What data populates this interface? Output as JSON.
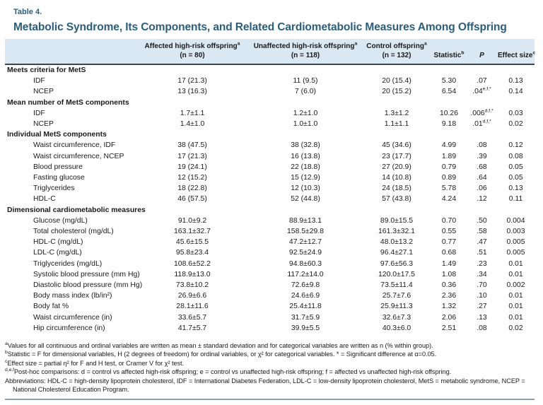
{
  "colors": {
    "title_navy": "#2b5d7c",
    "header_band": "#d9e8f3",
    "rule_dark": "#3a4750",
    "rule_bottom": "#8aa0b2",
    "text": "#1a1a1a"
  },
  "table": {
    "label": "Table 4.",
    "title": "Metabolic Syndrome, Its Components, and Related Cardiometabolic Measures Among Offspring",
    "columns": [
      {
        "label": "Affected high-risk offspring",
        "sup": "a",
        "count": "(n = 80)"
      },
      {
        "label": "Unaffected high-risk offspring",
        "sup": "a",
        "count": "(n = 118)"
      },
      {
        "label": "Control offspring",
        "sup": "a",
        "count": "(n = 132)"
      },
      {
        "label": "Statistic",
        "sup": "b"
      },
      {
        "label": "P",
        "italic": true
      },
      {
        "label": "Effect size",
        "sup": "c"
      }
    ],
    "sections": [
      {
        "header": "Meets criteria for MetS",
        "rows": [
          {
            "label": "IDF",
            "cells": [
              "17 (21.3)",
              "11 (9.5)",
              "20 (15.4)",
              "5.30",
              ".07",
              "0.13"
            ],
            "p_sup": ""
          },
          {
            "label": "NCEP",
            "cells": [
              "13 (16.3)",
              "7 (6.0)",
              "20 (15.2)",
              "6.54",
              ".04",
              "0.14"
            ],
            "p_sup": "e,f,*"
          }
        ]
      },
      {
        "header": "Mean number of MetS components",
        "rows": [
          {
            "label": "IDF",
            "cells": [
              "1.7±1.1",
              "1.2±1.0",
              "1.3±1.2",
              "10.26",
              ".006",
              "0.03"
            ],
            "p_sup": "d,f,*"
          },
          {
            "label": "NCEP",
            "cells": [
              "1.4±1.0",
              "1.0±1.0",
              "1.1±1.1",
              "9.18",
              ".01",
              "0.02"
            ],
            "p_sup": "d,f,*"
          }
        ]
      },
      {
        "header": "Individual MetS components",
        "rows": [
          {
            "label": "Waist circumference, IDF",
            "cells": [
              "38 (47.5)",
              "38 (32.8)",
              "45 (34.6)",
              "4.99",
              ".08",
              "0.12"
            ],
            "p_sup": ""
          },
          {
            "label": "Waist circumference, NCEP",
            "cells": [
              "17 (21.3)",
              "16 (13.8)",
              "23 (17.7)",
              "1.89",
              ".39",
              "0.08"
            ],
            "p_sup": ""
          },
          {
            "label": "Blood pressure",
            "cells": [
              "19 (24.1)",
              "22 (18.8)",
              "27 (20.9)",
              "0.79",
              ".68",
              "0.05"
            ],
            "p_sup": ""
          },
          {
            "label": "Fasting glucose",
            "cells": [
              "12 (15.2)",
              "15 (12.9)",
              "14 (10.8)",
              "0.89",
              ".64",
              "0.05"
            ],
            "p_sup": ""
          },
          {
            "label": "Triglycerides",
            "cells": [
              "18 (22.8)",
              "12 (10.3)",
              "24 (18.5)",
              "5.78",
              ".06",
              "0.13"
            ],
            "p_sup": ""
          },
          {
            "label": "HDL-C",
            "cells": [
              "46 (57.5)",
              "52 (44.8)",
              "57 (43.8)",
              "4.24",
              ".12",
              "0.11"
            ],
            "p_sup": ""
          }
        ]
      },
      {
        "header": "Dimensional cardiometabolic measures",
        "rows": [
          {
            "label": "Glucose (mg/dL)",
            "cells": [
              "91.0±9.2",
              "88.9±13.1",
              "89.0±15.5",
              "0.70",
              ".50",
              "0.004"
            ],
            "p_sup": ""
          },
          {
            "label": "Total cholesterol (mg/dL)",
            "cells": [
              "163.1±32.7",
              "158.5±29.8",
              "161.3±32.1",
              "0.55",
              ".58",
              "0.003"
            ],
            "p_sup": ""
          },
          {
            "label": "HDL-C (mg/dL)",
            "cells": [
              "45.6±15.5",
              "47.2±12.7",
              "48.0±13.2",
              "0.77",
              ".47",
              "0.005"
            ],
            "p_sup": ""
          },
          {
            "label": "LDL-C (mg/dL)",
            "cells": [
              "95.8±23.4",
              "92.5±24.9",
              "96.4±27.1",
              "0.68",
              ".51",
              "0.005"
            ],
            "p_sup": ""
          },
          {
            "label": "Triglycerides (mg/dL)",
            "cells": [
              "108.6±52.2",
              "94.8±60.3",
              "97.6±56.3",
              "1.49",
              ".23",
              "0.01"
            ],
            "p_sup": ""
          },
          {
            "label": "Systolic blood pressure (mm Hg)",
            "cells": [
              "118.9±13.0",
              "117.2±14.0",
              "120.0±17.5",
              "1.08",
              ".34",
              "0.01"
            ],
            "p_sup": ""
          },
          {
            "label": "Diastolic blood pressure (mm Hg)",
            "cells": [
              "73.8±10.2",
              "72.6±9.8",
              "73.5±11.4",
              "0.36",
              ".70",
              "0.002"
            ],
            "p_sup": ""
          },
          {
            "label": "Body mass index (lb/in²)",
            "cells": [
              "26.9±6.6",
              "24.6±6.9",
              "25.7±7.6",
              "2.36",
              ".10",
              "0.01"
            ],
            "p_sup": ""
          },
          {
            "label": "Body fat %",
            "cells": [
              "28.1±11.6",
              "25.4±11.8",
              "25.9±11.3",
              "1.32",
              ".27",
              "0.01"
            ],
            "p_sup": ""
          },
          {
            "label": "Waist circumference (in)",
            "cells": [
              "33.6±5.7",
              "31.7±5.9",
              "32.6±7.3",
              "2.06",
              ".13",
              "0.01"
            ],
            "p_sup": ""
          },
          {
            "label": "Hip circumference (in)",
            "cells": [
              "41.7±5.7",
              "39.9±5.5",
              "40.3±6.0",
              "2.51",
              ".08",
              "0.02"
            ],
            "p_sup": ""
          }
        ]
      }
    ]
  },
  "footnotes": [
    {
      "sup": "a",
      "text": "Values for all continuous and ordinal variables are written as mean ± standard deviation and for categorical variables are written as n (% within group)."
    },
    {
      "sup": "b",
      "text": "Statistic = F for dimensional variables, H (2 degrees of freedom) for ordinal variables, or χ² for categorical variables. * = Significant difference at α=0.05."
    },
    {
      "sup": "c",
      "text": "Effect size = partial η² for F and H test, or Cramer V for χ² test."
    },
    {
      "sup": "d,e,f",
      "text": "Post-hoc comparisons: d = control vs affected high-risk offspring; e = control vs unaffected high-risk offspring; f = affected vs unaffected high-risk offspring."
    },
    {
      "sup": "",
      "text": "Abbreviations: HDL-C = high-density lipoprotein cholesterol, IDF = International Diabetes Federation, LDL-C = low-density lipoprotein cholesterol, MetS = metabolic syndrome, NCEP = National Cholesterol Education Program."
    }
  ]
}
